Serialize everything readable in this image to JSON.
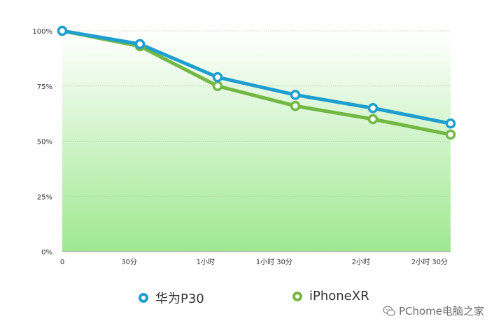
{
  "chart_data": {
    "type": "line",
    "categories": [
      "0",
      "30分",
      "1小时",
      "1小时 30分",
      "2小时",
      "2小时 30分"
    ],
    "series": [
      {
        "name": "华为P30",
        "color": "#1f9fd0",
        "values": [
          100,
          94,
          79,
          71,
          65,
          58
        ]
      },
      {
        "name": "iPhoneXR",
        "color": "#72b843",
        "values": [
          100,
          93,
          75,
          66,
          60,
          53
        ]
      }
    ],
    "y_ticks": [
      "0%",
      "25%",
      "50%",
      "75%",
      "100%"
    ],
    "ylim": [
      0,
      100
    ],
    "grid": true,
    "legend_position": "bottom",
    "background_gradient": {
      "top": "#ffffff",
      "bottom": "#9fe891"
    }
  },
  "watermark": {
    "text": "PChome电脑之家",
    "icon": "wechat-icon"
  }
}
